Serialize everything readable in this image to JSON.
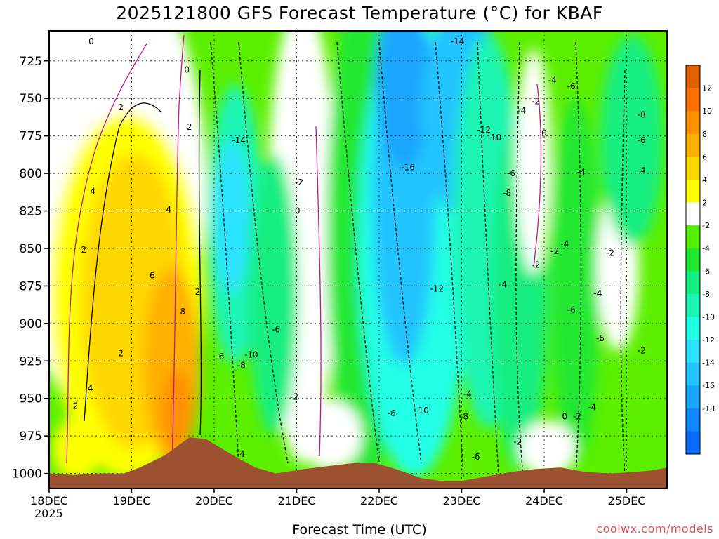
{
  "title": "2025121800 GFS Forecast Temperature (°C) for KBAF",
  "xlabel": "Forecast Time (UTC)",
  "credit": "coolwx.com/models",
  "year_label": "2025",
  "chart_data": {
    "type": "heatmap",
    "title": "2025121800 GFS Forecast Temperature (°C) for KBAF",
    "xlabel": "Forecast Time (UTC)",
    "ylabel": "",
    "x_ticks": [
      "18DEC",
      "19DEC",
      "20DEC",
      "21DEC",
      "22DEC",
      "23DEC",
      "24DEC",
      "25DEC"
    ],
    "x_range_days": [
      0,
      7.5
    ],
    "y_ticks": [
      725,
      750,
      775,
      800,
      825,
      850,
      875,
      900,
      925,
      950,
      975,
      1000
    ],
    "y_range_hpa": [
      1010,
      705
    ],
    "colorbar": {
      "levels": [
        -20,
        -18,
        -16,
        -14,
        -12,
        -10,
        -8,
        -6,
        -4,
        -2,
        2,
        4,
        6,
        8,
        10,
        12,
        14
      ],
      "labels": [
        "12",
        "10",
        "8",
        "6",
        "4",
        "2",
        "-2",
        "-4",
        "-6",
        "-8",
        "-10",
        "-12",
        "-14",
        "-16",
        "-18"
      ],
      "colors": [
        "#0a6cff",
        "#1188ff",
        "#1aa6ff",
        "#22c4ff",
        "#2ae2ff",
        "#22ffe6",
        "#1cf5b4",
        "#14ee80",
        "#20e830",
        "#55f000",
        "#ffffff",
        "#ffff00",
        "#ffd700",
        "#ffb000",
        "#ff9000",
        "#ff7000",
        "#e06000"
      ]
    },
    "grid": true,
    "contour_labels": [
      {
        "text": "0",
        "x": 0.51,
        "y": 712
      },
      {
        "text": "0",
        "x": 1.67,
        "y": 731
      },
      {
        "text": "2",
        "x": 0.87,
        "y": 756
      },
      {
        "text": "2",
        "x": 1.7,
        "y": 769
      },
      {
        "text": "4",
        "x": 0.53,
        "y": 812
      },
      {
        "text": "4",
        "x": 1.45,
        "y": 824
      },
      {
        "text": "2",
        "x": 0.42,
        "y": 851
      },
      {
        "text": "6",
        "x": 1.25,
        "y": 868
      },
      {
        "text": "2",
        "x": 1.8,
        "y": 879
      },
      {
        "text": "8",
        "x": 1.62,
        "y": 892
      },
      {
        "text": "2",
        "x": 0.87,
        "y": 920
      },
      {
        "text": "4",
        "x": 0.5,
        "y": 943
      },
      {
        "text": "2",
        "x": 0.32,
        "y": 955
      },
      {
        "text": "-14",
        "x": 2.3,
        "y": 778
      },
      {
        "text": "-2",
        "x": 3.03,
        "y": 806
      },
      {
        "text": "0",
        "x": 3.01,
        "y": 825
      },
      {
        "text": "-6",
        "x": 2.75,
        "y": 904
      },
      {
        "text": "-6",
        "x": 2.07,
        "y": 922
      },
      {
        "text": "-10",
        "x": 2.45,
        "y": 921
      },
      {
        "text": "-8",
        "x": 2.33,
        "y": 928
      },
      {
        "text": "-2",
        "x": 2.97,
        "y": 949
      },
      {
        "text": "-4",
        "x": 2.32,
        "y": 987
      },
      {
        "text": "-14",
        "x": 4.95,
        "y": 712
      },
      {
        "text": "-4",
        "x": 6.1,
        "y": 738
      },
      {
        "text": "-6",
        "x": 6.33,
        "y": 742
      },
      {
        "text": "-2",
        "x": 5.9,
        "y": 752
      },
      {
        "text": "-4",
        "x": 5.73,
        "y": 758
      },
      {
        "text": "-8",
        "x": 7.18,
        "y": 761
      },
      {
        "text": "-12",
        "x": 5.27,
        "y": 771
      },
      {
        "text": "-10",
        "x": 5.4,
        "y": 776
      },
      {
        "text": "0",
        "x": 6.0,
        "y": 773
      },
      {
        "text": "-6",
        "x": 7.18,
        "y": 778
      },
      {
        "text": "-16",
        "x": 4.35,
        "y": 796
      },
      {
        "text": "-4",
        "x": 6.45,
        "y": 799
      },
      {
        "text": "-4",
        "x": 7.18,
        "y": 798
      },
      {
        "text": "-6",
        "x": 5.6,
        "y": 800
      },
      {
        "text": "-8",
        "x": 5.55,
        "y": 813
      },
      {
        "text": "-4",
        "x": 6.25,
        "y": 847
      },
      {
        "text": "-2",
        "x": 6.13,
        "y": 852
      },
      {
        "text": "-2",
        "x": 6.8,
        "y": 853
      },
      {
        "text": "-2",
        "x": 5.9,
        "y": 861
      },
      {
        "text": "-12",
        "x": 4.7,
        "y": 877
      },
      {
        "text": "-4",
        "x": 5.5,
        "y": 874
      },
      {
        "text": "-4",
        "x": 6.65,
        "y": 880
      },
      {
        "text": "-6",
        "x": 6.33,
        "y": 891
      },
      {
        "text": "-6",
        "x": 6.68,
        "y": 910
      },
      {
        "text": "-2",
        "x": 7.18,
        "y": 918
      },
      {
        "text": "-4",
        "x": 5.07,
        "y": 947
      },
      {
        "text": "-10",
        "x": 4.52,
        "y": 958
      },
      {
        "text": "-6",
        "x": 4.15,
        "y": 960
      },
      {
        "text": "-8",
        "x": 5.03,
        "y": 962
      },
      {
        "text": "-4",
        "x": 6.58,
        "y": 956
      },
      {
        "text": "0",
        "x": 6.25,
        "y": 962
      },
      {
        "text": "-2",
        "x": 6.4,
        "y": 962
      },
      {
        "text": "-2",
        "x": 5.68,
        "y": 979
      },
      {
        "text": "-6",
        "x": 5.17,
        "y": 989
      }
    ]
  }
}
